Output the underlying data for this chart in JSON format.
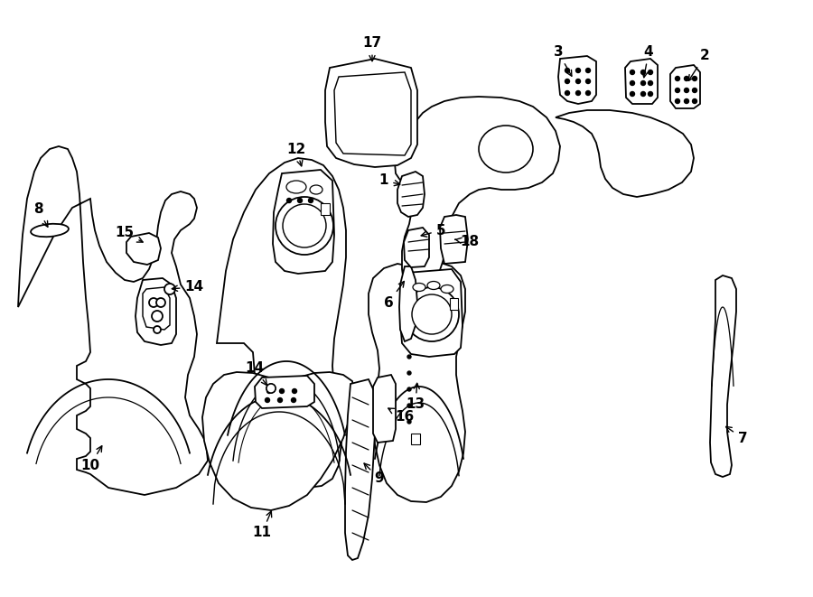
{
  "bg_color": "#ffffff",
  "line_color": "#000000",
  "lw": 1.3,
  "fig_w": 9.0,
  "fig_h": 6.61,
  "dpi": 100
}
